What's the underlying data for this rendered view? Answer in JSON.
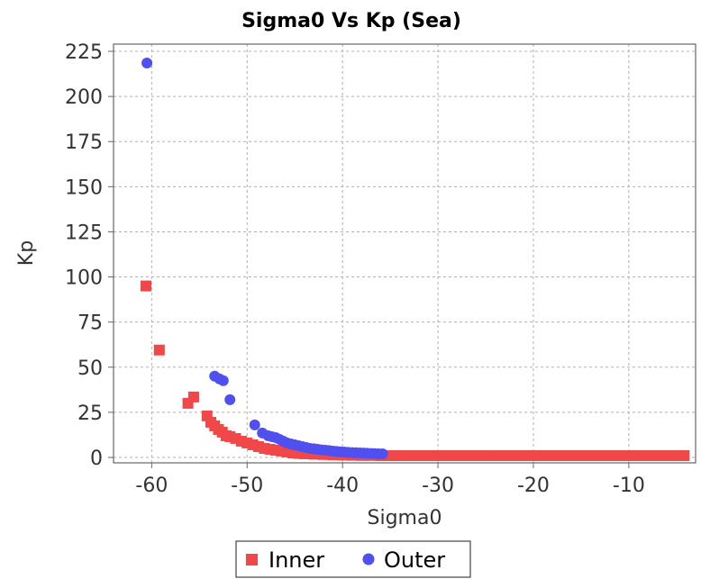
{
  "chart_data": {
    "type": "scatter",
    "title": "Sigma0 Vs Kp (Sea)",
    "xlabel": "Sigma0",
    "ylabel": "Kp",
    "xlim": [
      -64,
      -3
    ],
    "ylim": [
      -3,
      229
    ],
    "x_ticks": [
      -60,
      -50,
      -40,
      -30,
      -20,
      -10
    ],
    "y_ticks": [
      0,
      25,
      50,
      75,
      100,
      125,
      150,
      175,
      200,
      225
    ],
    "grid": true,
    "legend_position": "bottom-center",
    "series": [
      {
        "name": "Inner",
        "marker": "square",
        "color": "#f04848",
        "points": [
          [
            -60.6,
            95
          ],
          [
            -59.2,
            59.5
          ],
          [
            -56.2,
            30
          ],
          [
            -55.6,
            33.5
          ],
          [
            -54.2,
            23
          ],
          [
            -53.8,
            19.5
          ],
          [
            -53.4,
            17.5
          ],
          [
            -53.0,
            15.5
          ],
          [
            -52.6,
            14
          ],
          [
            -52.2,
            12
          ],
          [
            -51.8,
            11.5
          ],
          [
            -51.2,
            10.5
          ],
          [
            -50.6,
            9
          ],
          [
            -50.0,
            8
          ],
          [
            -49.4,
            7
          ],
          [
            -48.8,
            6
          ],
          [
            -48.2,
            5
          ],
          [
            -47.6,
            4.5
          ],
          [
            -47.0,
            4
          ],
          [
            -46.4,
            3.5
          ],
          [
            -45.8,
            3
          ],
          [
            -45.2,
            2.5
          ],
          [
            -44.6,
            2.2
          ],
          [
            -44.0,
            2
          ],
          [
            -43.0,
            1.8
          ],
          [
            -42.0,
            1.6
          ],
          [
            -41.0,
            1.4
          ],
          [
            -40.0,
            1.3
          ],
          [
            -39.0,
            1.2
          ],
          [
            -38.0,
            1.1
          ],
          [
            -37.0,
            1.1
          ],
          [
            -36.0,
            1.0
          ],
          [
            -35.0,
            1.0
          ],
          [
            -34.0,
            1.0
          ],
          [
            -33.0,
            1.0
          ],
          [
            -32.0,
            1.0
          ],
          [
            -31.0,
            1.0
          ],
          [
            -30.0,
            1.0
          ],
          [
            -29.0,
            1.0
          ],
          [
            -28.0,
            1.0
          ],
          [
            -27.0,
            1.0
          ],
          [
            -26.0,
            1.0
          ],
          [
            -25.0,
            1.0
          ],
          [
            -24.0,
            1.0
          ],
          [
            -23.0,
            1.0
          ],
          [
            -22.0,
            1.0
          ],
          [
            -21.0,
            1.0
          ],
          [
            -20.0,
            1.0
          ],
          [
            -19.0,
            1.0
          ],
          [
            -18.0,
            1.0
          ],
          [
            -17.0,
            1.0
          ],
          [
            -16.0,
            1.0
          ],
          [
            -15.0,
            1.0
          ],
          [
            -14.0,
            1.0
          ],
          [
            -13.0,
            1.0
          ],
          [
            -12.0,
            1.0
          ],
          [
            -11.0,
            1.0
          ],
          [
            -10.0,
            1.0
          ],
          [
            -9.0,
            1.0
          ],
          [
            -8.0,
            1.0
          ],
          [
            -7.0,
            1.0
          ],
          [
            -6.0,
            1.0
          ],
          [
            -5.0,
            1.0
          ],
          [
            -4.2,
            1.0
          ]
        ]
      },
      {
        "name": "Outer",
        "marker": "circle",
        "color": "#5050f0",
        "points": [
          [
            -60.5,
            218.5
          ],
          [
            -53.4,
            45
          ],
          [
            -52.9,
            43.5
          ],
          [
            -52.5,
            42.5
          ],
          [
            -51.8,
            32
          ],
          [
            -49.2,
            18
          ],
          [
            -48.4,
            13.5
          ],
          [
            -47.8,
            12
          ],
          [
            -47.4,
            11.5
          ],
          [
            -47.0,
            11
          ],
          [
            -46.6,
            10
          ],
          [
            -46.2,
            9
          ],
          [
            -45.8,
            8
          ],
          [
            -45.4,
            7.5
          ],
          [
            -45.0,
            7
          ],
          [
            -44.6,
            6.5
          ],
          [
            -44.2,
            6
          ],
          [
            -43.8,
            5.5
          ],
          [
            -43.4,
            5
          ],
          [
            -43.0,
            4.8
          ],
          [
            -42.6,
            4.5
          ],
          [
            -42.2,
            4.2
          ],
          [
            -41.8,
            4
          ],
          [
            -41.4,
            3.8
          ],
          [
            -41.0,
            3.5
          ],
          [
            -40.6,
            3.3
          ],
          [
            -40.2,
            3.1
          ],
          [
            -39.8,
            3
          ],
          [
            -39.4,
            2.8
          ],
          [
            -39.0,
            2.7
          ],
          [
            -38.6,
            2.6
          ],
          [
            -38.2,
            2.5
          ],
          [
            -37.8,
            2.4
          ],
          [
            -37.4,
            2.3
          ],
          [
            -37.0,
            2.2
          ],
          [
            -36.6,
            2.1
          ],
          [
            -36.2,
            2.0
          ],
          [
            -35.8,
            2.0
          ]
        ]
      }
    ]
  }
}
